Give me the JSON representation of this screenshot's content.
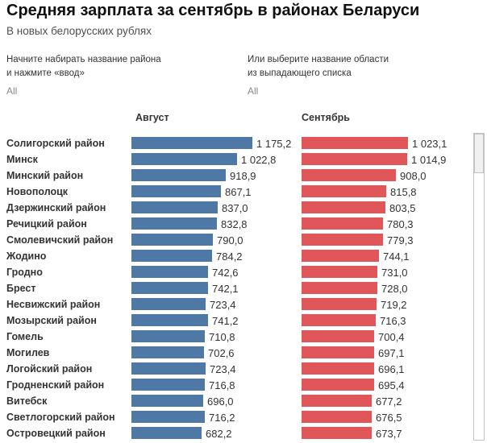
{
  "title": "Средняя зарплата за сентябрь в районах Беларуси",
  "subtitle": "В новых белорусских рублях",
  "filters": {
    "district": {
      "label_line1": "Начните набирать название района",
      "label_line2": "и нажмите «ввод»",
      "value": "All"
    },
    "region": {
      "label_line1": "Или выберите название области",
      "label_line2": "из выпадающего списка",
      "value": "All"
    }
  },
  "columns": {
    "august": "Август",
    "september": "Сентябрь"
  },
  "colors": {
    "august_bar": "#4e79a7",
    "september_bar": "#e15759"
  },
  "chart_data": {
    "type": "bar",
    "orientation": "horizontal",
    "title": "Средняя зарплата за сентябрь в районах Беларуси",
    "subtitle": "В новых белорусских рублях",
    "units": "новые белорусские рубли",
    "legend_position": "column-headers",
    "grid": false,
    "categories": [
      "Солигорский район",
      "Минск",
      "Минский район",
      "Новополоцк",
      "Дзержинский район",
      "Речицкий район",
      "Смолевичский район",
      "Жодино",
      "Гродно",
      "Брест",
      "Несвижский район",
      "Мозырский район",
      "Гомель",
      "Могилев",
      "Логойский район",
      "Гродненский район",
      "Витебск",
      "Светлогорский район",
      "Островецкий район"
    ],
    "series": [
      {
        "name": "Август",
        "color": "#4e79a7",
        "axis_max": 1175.2,
        "values": [
          1175.2,
          1022.8,
          918.9,
          867.1,
          837.0,
          832.8,
          790.0,
          784.2,
          742.6,
          742.1,
          723.4,
          741.2,
          710.8,
          702.6,
          723.4,
          716.8,
          696.0,
          716.2,
          682.2
        ],
        "labels": [
          "1 175,2",
          "1 022,8",
          "918,9",
          "867,1",
          "837,0",
          "832,8",
          "790,0",
          "784,2",
          "742,6",
          "742,1",
          "723,4",
          "741,2",
          "710,8",
          "702,6",
          "723,4",
          "716,8",
          "696,0",
          "716,2",
          "682,2"
        ]
      },
      {
        "name": "Сентябрь",
        "color": "#e15759",
        "axis_max": 1023.1,
        "values": [
          1023.1,
          1014.9,
          908.0,
          815.8,
          803.5,
          780.3,
          779.3,
          744.1,
          731.0,
          728.0,
          719.2,
          716.3,
          700.4,
          697.1,
          696.1,
          695.4,
          677.2,
          676.5,
          673.7
        ],
        "labels": [
          "1 023,1",
          "1 014,9",
          "908,0",
          "815,8",
          "803,5",
          "780,3",
          "779,3",
          "744,1",
          "731,0",
          "728,0",
          "719,2",
          "716,3",
          "700,4",
          "697,1",
          "696,1",
          "695,4",
          "677,2",
          "676,5",
          "673,7"
        ]
      }
    ]
  }
}
